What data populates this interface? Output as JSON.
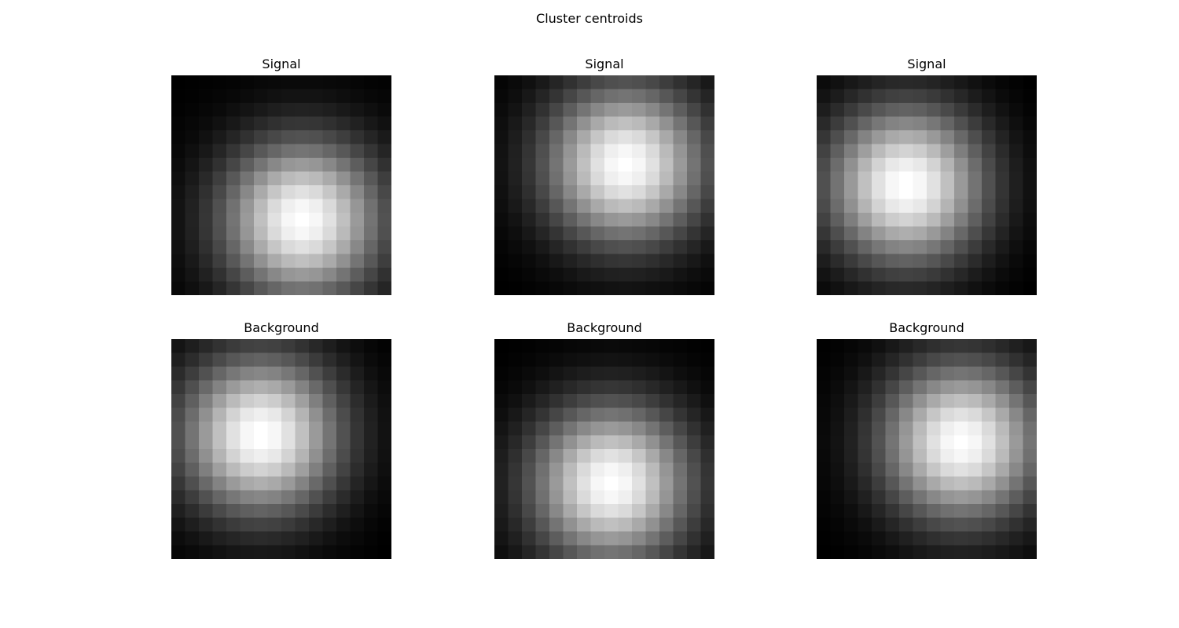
{
  "figure": {
    "title": "Cluster centroids"
  },
  "chart_data": [
    {
      "type": "heatmap",
      "title": "Signal",
      "grid_size": 16,
      "colormap": "gray",
      "value_range": [
        0,
        1
      ],
      "blob": {
        "center_row": 10.0,
        "center_col": 9.0,
        "sigma": 4.0
      }
    },
    {
      "type": "heatmap",
      "title": "Signal",
      "grid_size": 16,
      "colormap": "gray",
      "value_range": [
        0,
        1
      ],
      "blob": {
        "center_row": 6.0,
        "center_col": 9.0,
        "sigma": 4.0
      }
    },
    {
      "type": "heatmap",
      "title": "Signal",
      "grid_size": 16,
      "colormap": "gray",
      "value_range": [
        0,
        1
      ],
      "blob": {
        "center_row": 7.5,
        "center_col": 6.0,
        "sigma": 4.0
      }
    },
    {
      "type": "heatmap",
      "title": "Background",
      "grid_size": 16,
      "colormap": "gray",
      "value_range": [
        0,
        1
      ],
      "blob": {
        "center_row": 6.5,
        "center_col": 6.0,
        "sigma": 4.0
      }
    },
    {
      "type": "heatmap",
      "title": "Background",
      "grid_size": 16,
      "colormap": "gray",
      "value_range": [
        0,
        1
      ],
      "blob": {
        "center_row": 10.0,
        "center_col": 8.0,
        "sigma": 4.0
      }
    },
    {
      "type": "heatmap",
      "title": "Background",
      "grid_size": 16,
      "colormap": "gray",
      "value_range": [
        0,
        1
      ],
      "blob": {
        "center_row": 7.0,
        "center_col": 10.0,
        "sigma": 4.0
      }
    }
  ]
}
